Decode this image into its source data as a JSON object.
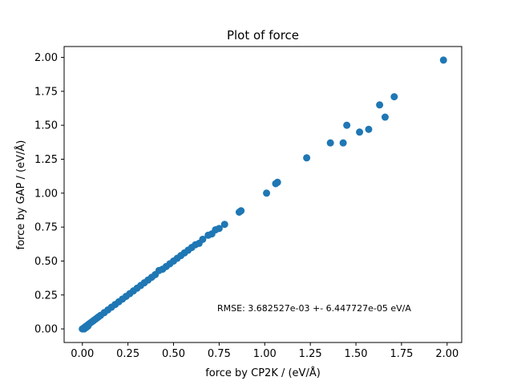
{
  "chart_data": {
    "type": "scatter",
    "title": "Plot of force",
    "xlabel": "force by CP2K / (eV/Å)",
    "ylabel": "force by GAP / (eV/Å)",
    "xlim": [
      -0.1,
      2.08
    ],
    "ylim": [
      -0.1,
      2.08
    ],
    "xticks": [
      "0.00",
      "0.25",
      "0.50",
      "0.75",
      "1.00",
      "1.25",
      "1.50",
      "1.75",
      "2.00"
    ],
    "yticks": [
      "0.00",
      "0.25",
      "0.50",
      "0.75",
      "1.00",
      "1.25",
      "1.50",
      "1.75",
      "2.00"
    ],
    "grid": false,
    "marker_color": "#1f77b4",
    "annotation": "RMSE: 3.682527e-03 +- 6.447727e-05 eV/A",
    "series": [
      {
        "x": [
          1.98,
          1.71,
          1.63,
          1.66,
          1.45,
          1.57,
          1.52,
          1.36,
          1.43,
          1.23,
          1.06,
          1.07,
          1.01,
          0.87,
          0.86,
          0.78,
          0.75,
          0.73,
          0.71,
          0.69,
          0.66,
          0.64,
          0.62,
          0.6,
          0.58,
          0.56,
          0.54,
          0.52,
          0.5,
          0.48,
          0.46,
          0.44,
          0.42,
          0.4,
          0.38,
          0.36,
          0.34,
          0.32,
          0.3,
          0.28,
          0.26,
          0.24,
          0.22,
          0.2,
          0.18,
          0.16,
          0.14,
          0.12,
          0.1,
          0.09,
          0.08,
          0.07,
          0.06,
          0.05,
          0.04,
          0.03,
          0.02,
          0.01,
          0.0,
          0.01,
          0.02,
          0.03
        ],
        "y": [
          1.98,
          1.71,
          1.65,
          1.56,
          1.5,
          1.47,
          1.45,
          1.37,
          1.37,
          1.26,
          1.07,
          1.08,
          1.0,
          0.87,
          0.86,
          0.77,
          0.74,
          0.73,
          0.7,
          0.69,
          0.66,
          0.63,
          0.62,
          0.6,
          0.58,
          0.56,
          0.54,
          0.52,
          0.5,
          0.48,
          0.46,
          0.44,
          0.43,
          0.4,
          0.38,
          0.36,
          0.34,
          0.32,
          0.3,
          0.28,
          0.26,
          0.24,
          0.22,
          0.2,
          0.18,
          0.16,
          0.14,
          0.12,
          0.1,
          0.09,
          0.08,
          0.07,
          0.06,
          0.05,
          0.04,
          0.03,
          0.02,
          0.01,
          0.0,
          0.0,
          0.01,
          0.02
        ]
      }
    ]
  }
}
